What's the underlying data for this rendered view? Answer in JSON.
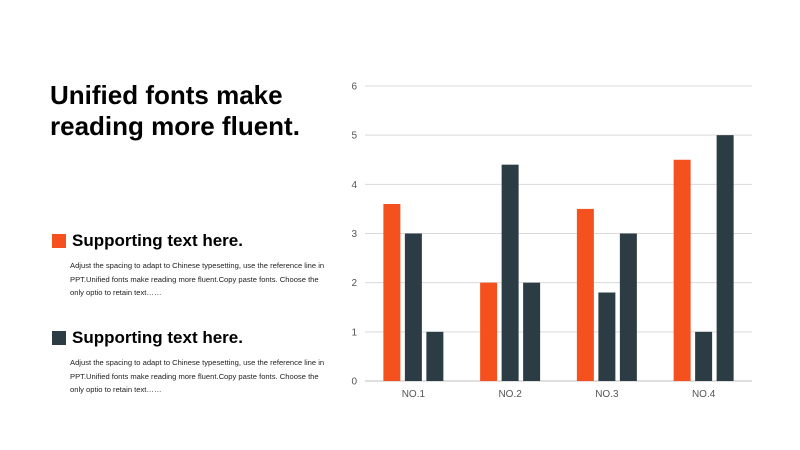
{
  "headline": "Unified fonts make reading more fluent.",
  "blocks": [
    {
      "title": "Supporting text here.",
      "body": "Adjust the spacing to adapt to Chinese typesetting, use the reference line in PPT.Unified fonts make reading more fluent.Copy paste fonts. Choose the only optio to retain text……",
      "color": "#f4511e"
    },
    {
      "title": "Supporting text here.",
      "body": "Adjust the spacing to adapt to Chinese typesetting, use the reference line in PPT.Unified fonts make reading more fluent.Copy paste fonts. Choose the only optio to retain text……",
      "color": "#2c3c44"
    }
  ],
  "colors": {
    "accent": "#f4511e",
    "dark": "#2c3c44"
  },
  "chart_data": {
    "type": "bar",
    "categories": [
      "NO.1",
      "NO.2",
      "NO.3",
      "NO.4"
    ],
    "series": [
      {
        "values": [
          3.6,
          2,
          3.5,
          4.5
        ],
        "color": "#f4511e"
      },
      {
        "values": [
          3,
          4.4,
          1.8,
          1
        ],
        "color": "#2c3c44"
      },
      {
        "values": [
          1,
          2,
          3,
          5
        ],
        "color": "#2c3c44"
      }
    ],
    "yticks": [
      "0",
      "1",
      "2",
      "3",
      "4",
      "5",
      "6"
    ],
    "ylim": [
      0,
      6
    ],
    "grid": true,
    "legend": "none"
  }
}
